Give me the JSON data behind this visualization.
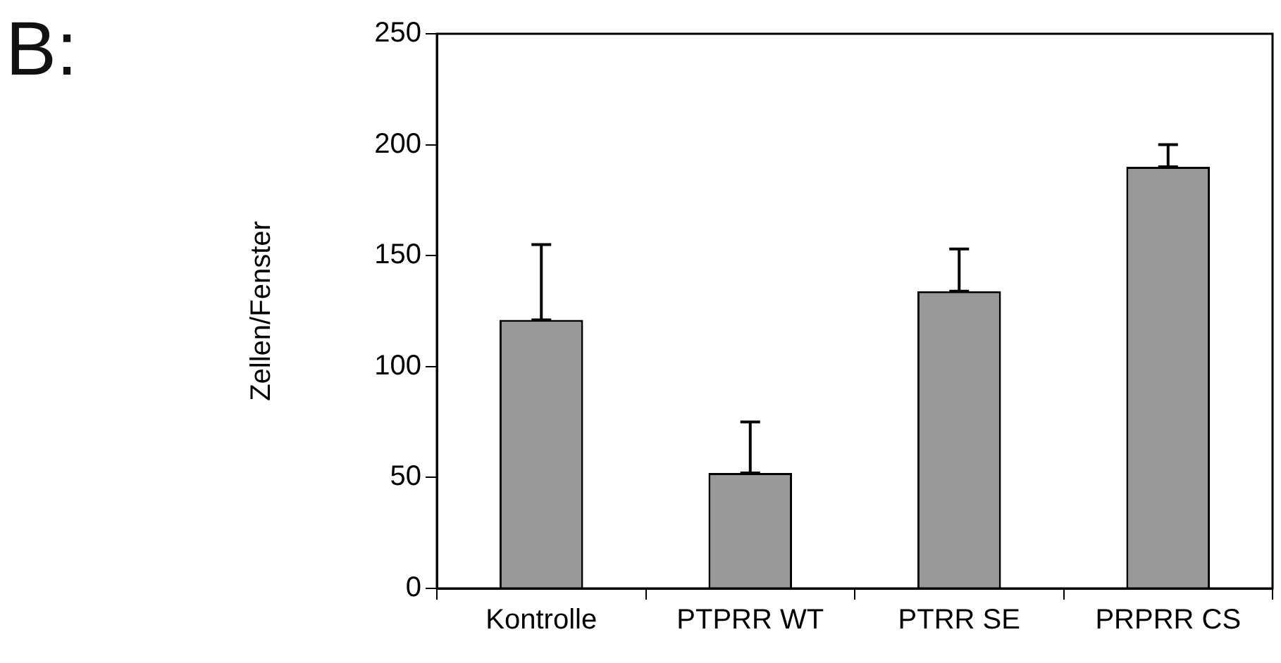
{
  "chart_data": {
    "type": "bar",
    "ylabel": "Zellen/Fenster",
    "annotations": [
      "B:"
    ],
    "categories": [
      "Kontrolle",
      "PTPRR WT",
      "PTRR SE",
      "PRPRR CS"
    ],
    "values": [
      121,
      52,
      134,
      190
    ],
    "color": "#999999",
    "errors": [
      [
        121,
        155
      ],
      [
        52,
        75
      ],
      [
        134,
        153
      ],
      [
        190,
        200
      ]
    ],
    "ylim": [
      0,
      250
    ],
    "yticks": [
      0,
      50,
      100,
      150,
      200,
      250
    ],
    "grid": false,
    "legend": false
  }
}
